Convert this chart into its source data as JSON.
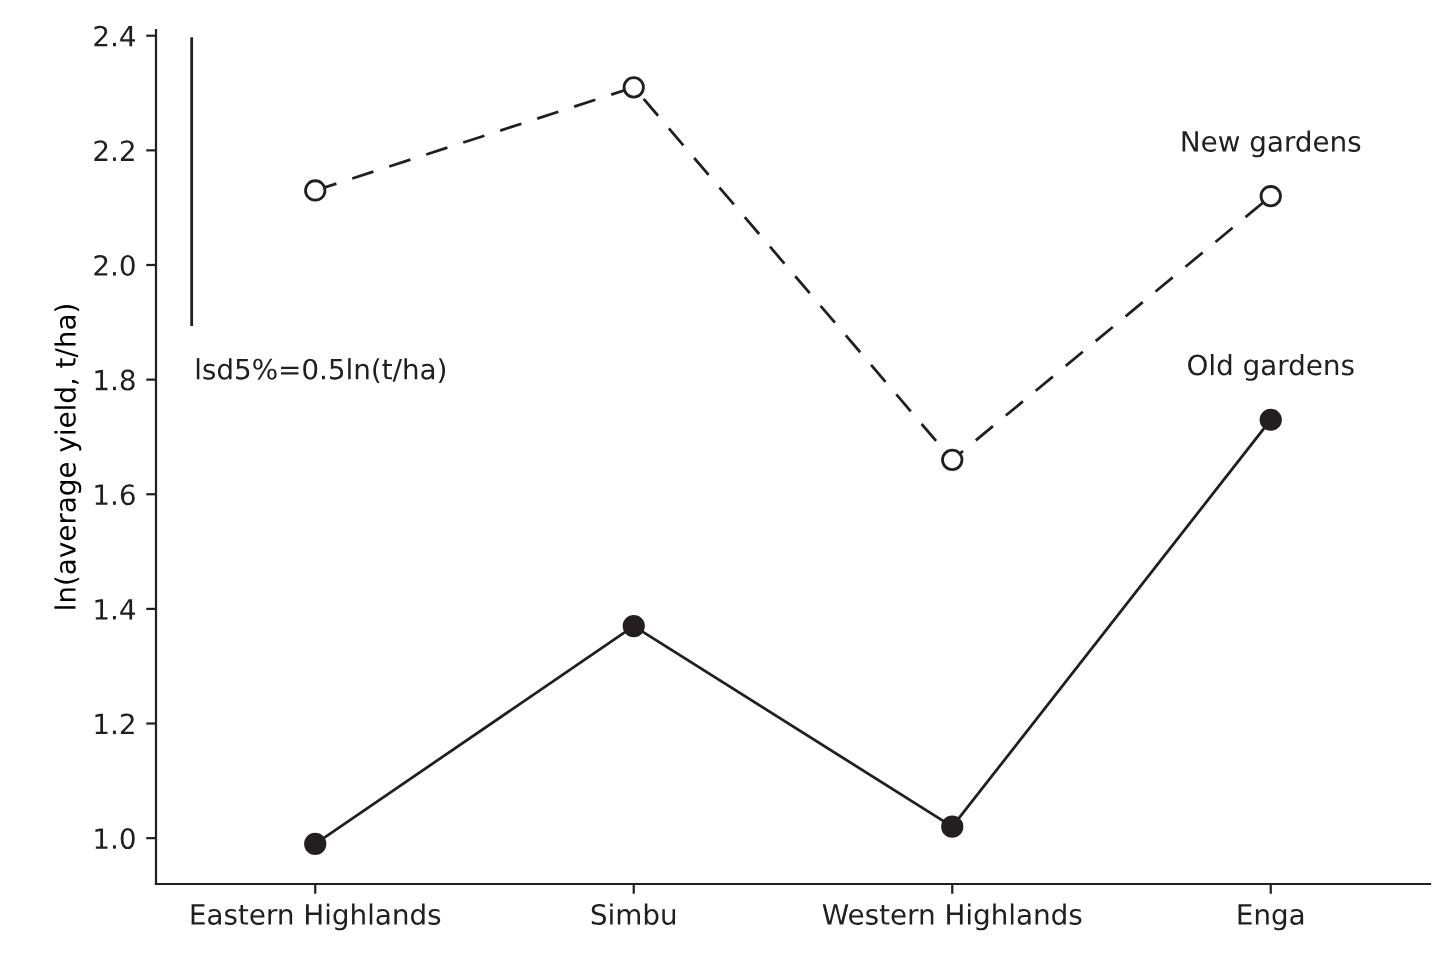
{
  "chart_data": {
    "type": "line",
    "ylabel": "ln(average yield, t/ha)",
    "categories": [
      "Eastern Highlands",
      "Simbu",
      "Western Highlands",
      "Enga"
    ],
    "series": [
      {
        "name": "New gardens",
        "color": "#231f20",
        "values": [
          2.13,
          2.31,
          1.66,
          2.12
        ],
        "marker": "circle",
        "line_style": "dashed"
      },
      {
        "name": "Old gardens",
        "color": "#231f20",
        "values": [
          0.99,
          1.37,
          1.02,
          1.73
        ],
        "marker": "circle",
        "line_style": "solid"
      }
    ],
    "ylim": [
      0.92,
      2.41
    ],
    "yticks": [
      {
        "value": 1.0,
        "label": "1.0"
      },
      {
        "value": 1.2,
        "label": "1.2"
      },
      {
        "value": 1.4,
        "label": "1.4"
      },
      {
        "value": 1.6,
        "label": "1.6"
      },
      {
        "value": 1.8,
        "label": "1.8"
      },
      {
        "value": 2.0,
        "label": "2.0"
      },
      {
        "value": 2.2,
        "label": "2.2"
      },
      {
        "value": 2.4,
        "label": "2.4"
      }
    ],
    "annotations": [
      "lsd5%=0.5ln(t/ha)"
    ],
    "grid": false,
    "legend": false
  }
}
